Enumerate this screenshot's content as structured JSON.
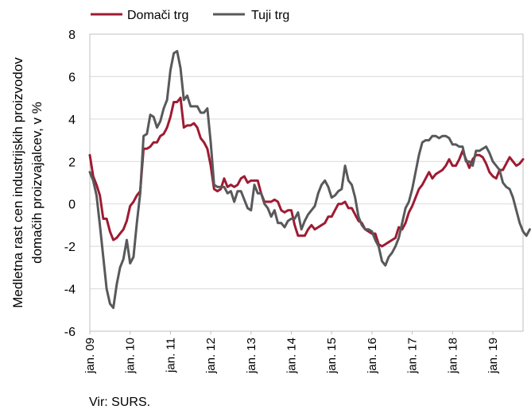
{
  "chart_data": {
    "type": "line",
    "title": "",
    "xlabel": "",
    "ylabel_lines": [
      "Medletna rast cen industrijskih proizvodov",
      "domačih proizvajalcev, v %"
    ],
    "source": "Vir: SURS.",
    "ylim": [
      -6,
      8
    ],
    "yticks": [
      "-6",
      "-4",
      "-2",
      "0",
      "2",
      "4",
      "6",
      "8"
    ],
    "xlim": [
      2009.0,
      2019.75
    ],
    "xtick_labels": [
      "jan. 09",
      "jan. 10",
      "jan. 11",
      "jan. 12",
      "jan. 13",
      "jan. 14",
      "jan. 15",
      "jan. 16",
      "jan. 17",
      "jan. 18",
      "jan. 19"
    ],
    "grid": "horizontal",
    "legend": "top-left",
    "start_month": "jan. 09",
    "series": [
      {
        "name": "Domači trg",
        "color": "#9e1b32",
        "values": [
          2.3,
          1.3,
          0.9,
          0.4,
          -0.7,
          -0.7,
          -1.3,
          -1.7,
          -1.6,
          -1.4,
          -1.2,
          -0.8,
          -0.1,
          0.1,
          0.4,
          0.6,
          2.6,
          2.6,
          2.7,
          2.9,
          2.9,
          3.2,
          3.3,
          3.6,
          4.1,
          4.8,
          4.8,
          5.0,
          3.6,
          3.7,
          3.7,
          3.8,
          3.6,
          3.1,
          2.9,
          2.6,
          1.8,
          0.7,
          0.6,
          0.7,
          1.2,
          0.8,
          0.9,
          0.8,
          0.9,
          1.2,
          1.3,
          1.0,
          1.1,
          1.1,
          1.1,
          0.5,
          0.1,
          0.1,
          0.1,
          0.2,
          0.1,
          -0.3,
          -0.4,
          -0.3,
          -0.3,
          -1.0,
          -1.5,
          -1.5,
          -1.5,
          -1.2,
          -1.0,
          -1.2,
          -1.1,
          -1.0,
          -0.9,
          -0.6,
          -0.6,
          -0.3,
          0.0,
          0.0,
          0.1,
          -0.2,
          -0.2,
          -0.5,
          -0.8,
          -0.9,
          -1.2,
          -1.3,
          -1.4,
          -1.4,
          -1.9,
          -2.0,
          -1.9,
          -1.8,
          -1.7,
          -1.6,
          -1.1,
          -1.2,
          -0.9,
          -0.4,
          -0.1,
          0.3,
          0.7,
          0.9,
          1.2,
          1.5,
          1.2,
          1.4,
          1.5,
          1.6,
          1.8,
          2.1,
          1.8,
          1.8,
          2.1,
          2.5,
          2.1,
          1.7,
          2.1,
          2.3,
          2.3,
          2.2,
          1.9,
          1.5,
          1.3,
          1.2,
          1.6,
          1.6,
          1.9,
          2.2,
          2.0,
          1.8,
          1.9,
          2.1
        ]
      },
      {
        "name": "Tuji trg",
        "color": "#58595b",
        "values": [
          1.5,
          1.1,
          0.4,
          -1.0,
          -2.5,
          -4.0,
          -4.7,
          -4.9,
          -3.8,
          -3.0,
          -2.6,
          -1.7,
          -2.8,
          -2.5,
          -0.9,
          0.5,
          3.2,
          3.3,
          4.2,
          4.1,
          3.6,
          3.9,
          4.5,
          4.9,
          6.3,
          7.1,
          7.2,
          6.4,
          4.9,
          5.1,
          4.6,
          4.6,
          4.6,
          4.3,
          4.3,
          4.5,
          2.9,
          0.9,
          0.8,
          0.8,
          0.8,
          0.5,
          0.6,
          0.1,
          0.6,
          0.6,
          0.2,
          -0.2,
          -0.3,
          0.9,
          0.5,
          0.5,
          0.0,
          -0.2,
          -0.6,
          -0.3,
          -0.9,
          -0.9,
          -1.1,
          -0.8,
          -0.7,
          -0.7,
          -0.4,
          -1.2,
          -0.8,
          -0.5,
          -0.3,
          -0.1,
          0.5,
          0.9,
          1.1,
          0.8,
          0.3,
          0.4,
          0.6,
          0.7,
          1.8,
          1.1,
          0.9,
          0.3,
          -0.6,
          -1.0,
          -1.2,
          -1.2,
          -1.3,
          -1.7,
          -2.0,
          -2.7,
          -2.9,
          -2.5,
          -2.3,
          -2.0,
          -1.6,
          -0.9,
          -0.2,
          0.1,
          0.7,
          1.5,
          2.3,
          2.9,
          3.0,
          3.0,
          3.2,
          3.2,
          3.1,
          3.2,
          3.2,
          3.1,
          2.8,
          2.8,
          2.7,
          2.7,
          2.0,
          2.0,
          1.8,
          2.5,
          2.5,
          2.6,
          2.7,
          2.4,
          2.0,
          1.8,
          1.6,
          1.0,
          0.8,
          0.7,
          0.3,
          -0.3,
          -0.9,
          -1.3,
          -1.5,
          -1.2
        ]
      }
    ]
  }
}
